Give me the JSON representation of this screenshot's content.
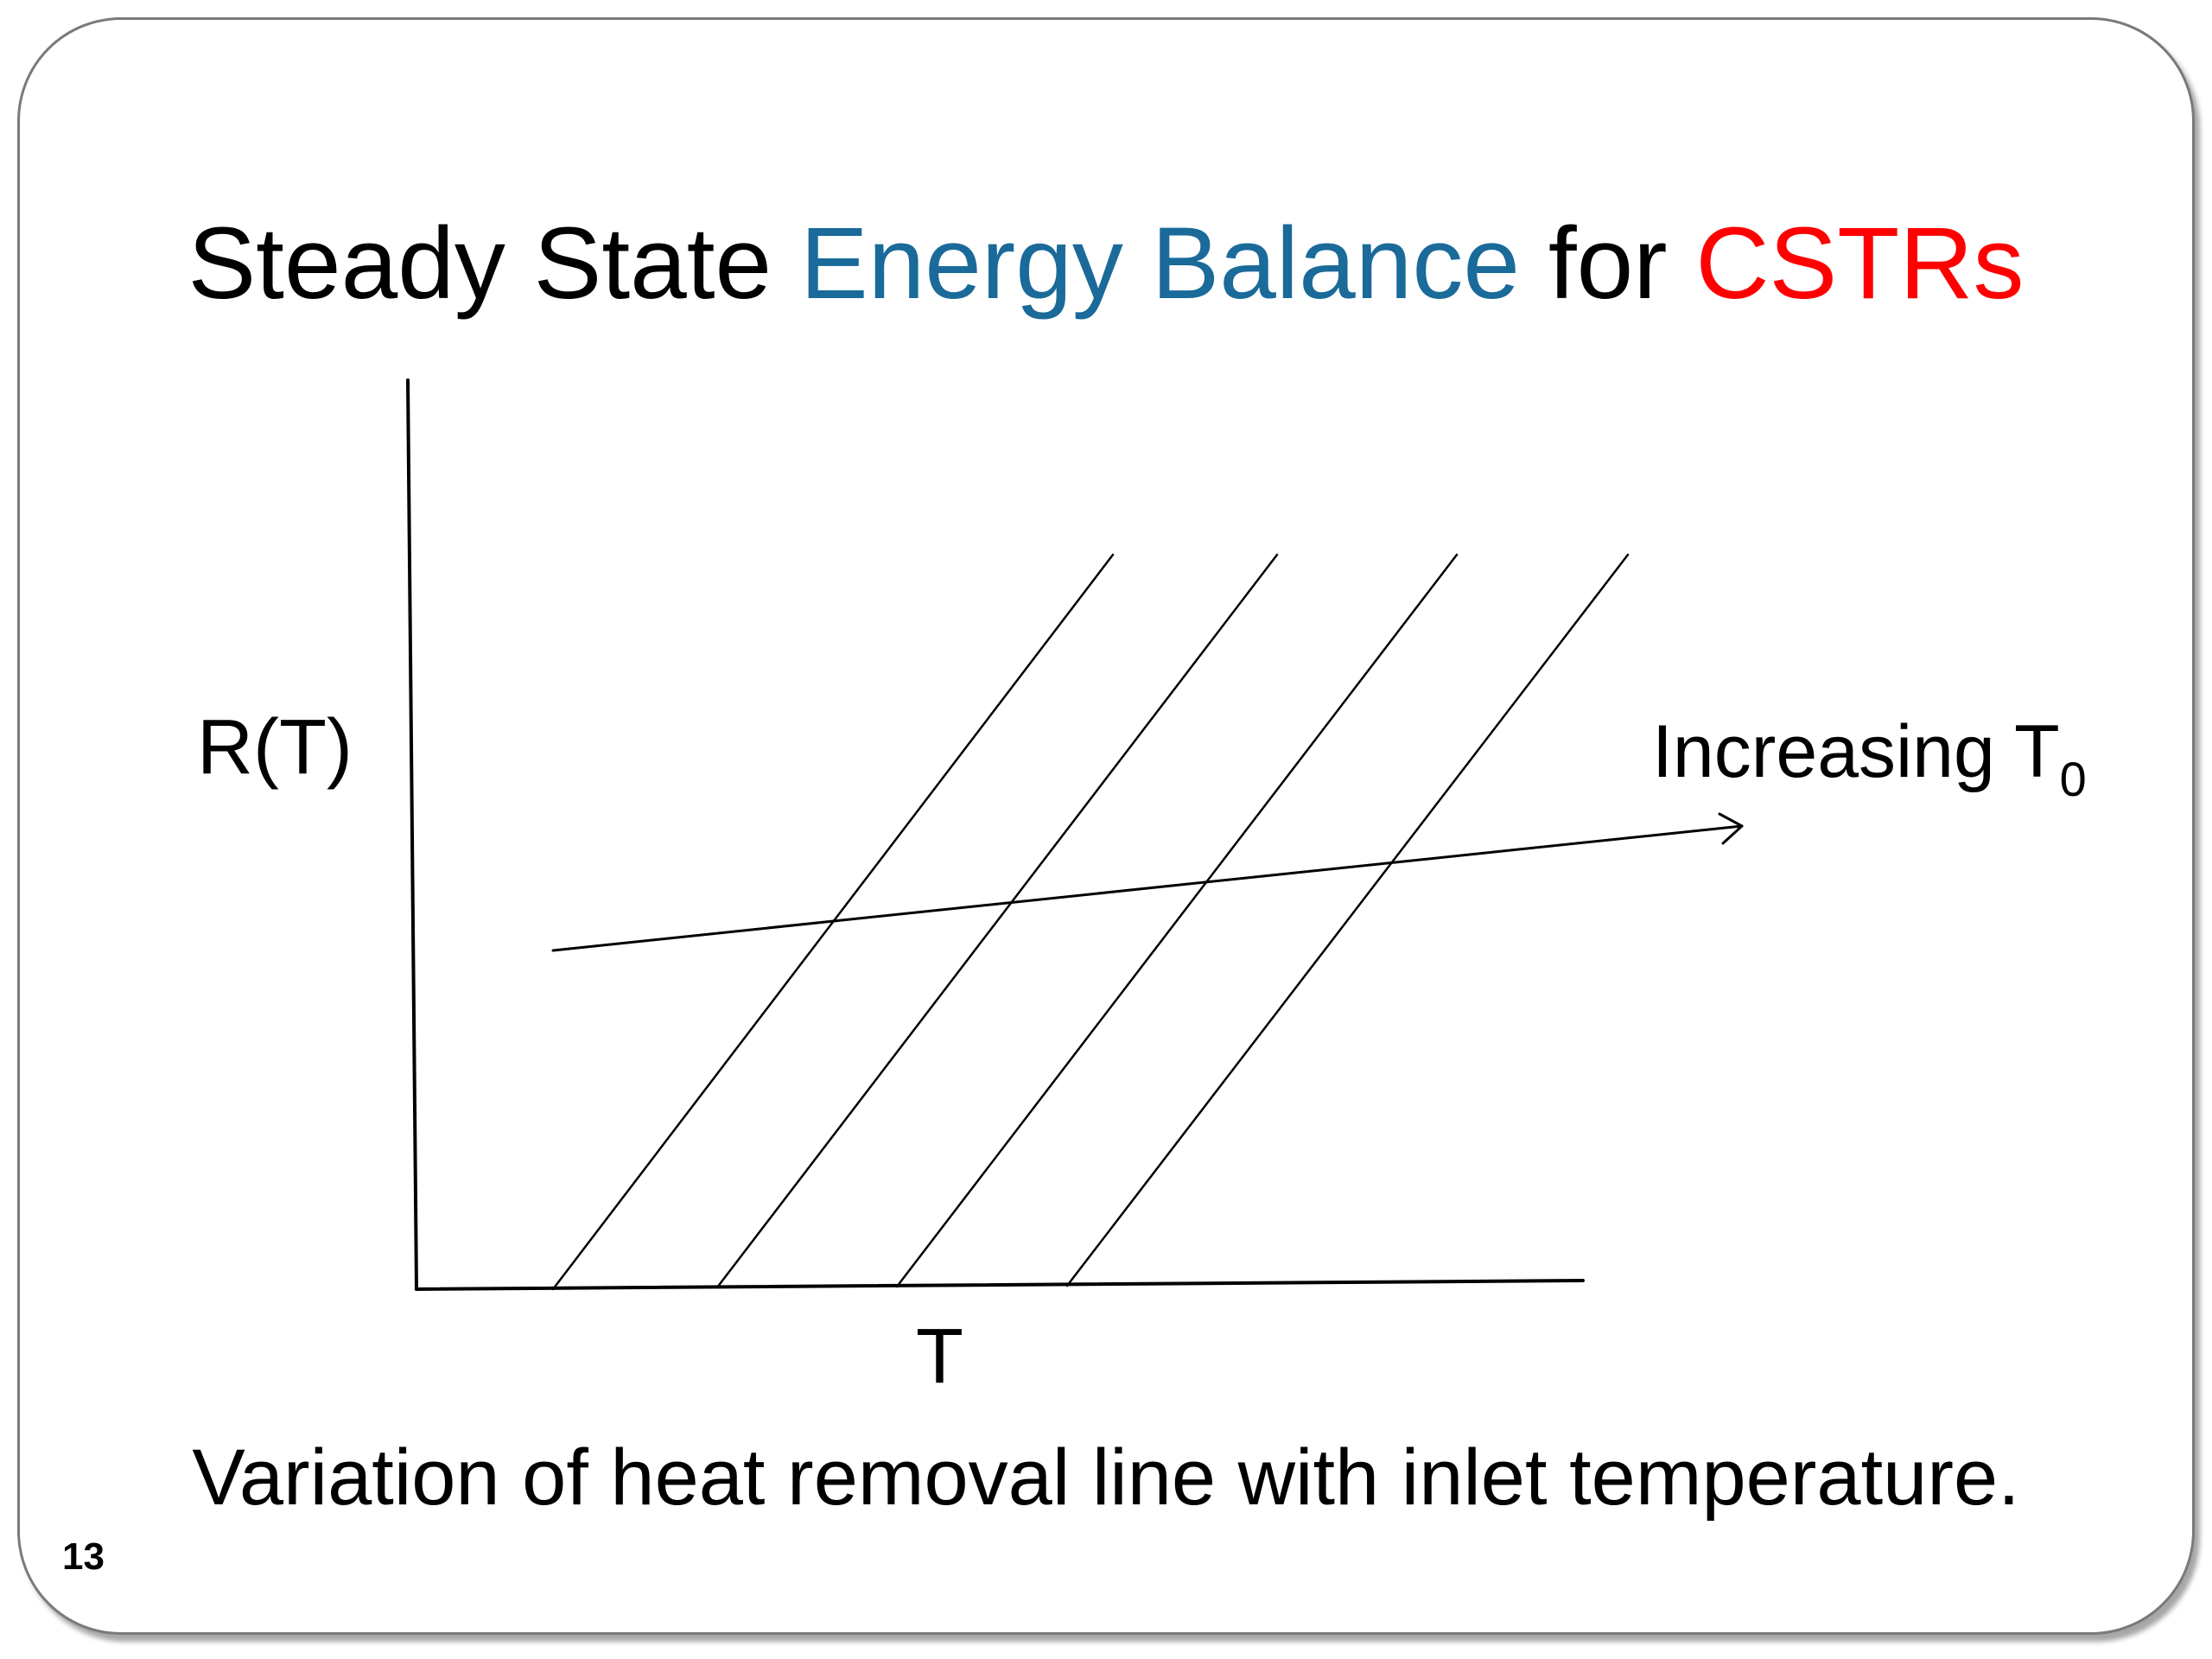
{
  "slide": {
    "title_part1": "Steady State ",
    "title_part2": "Energy Balance",
    "title_part3": " for ",
    "title_part4": "CSTRs",
    "title_colors": {
      "highlight_blue": "#1a6a9a",
      "highlight_red": "#ff0000"
    },
    "slide_number": "13"
  },
  "diagram": {
    "y_axis_label": "R(T)",
    "x_axis_label": "T",
    "arrow_label_main": "Increasing T",
    "arrow_label_sub": "0",
    "heat_removal_line_count": 4,
    "caption": "Variation of heat removal line with inlet temperature."
  }
}
